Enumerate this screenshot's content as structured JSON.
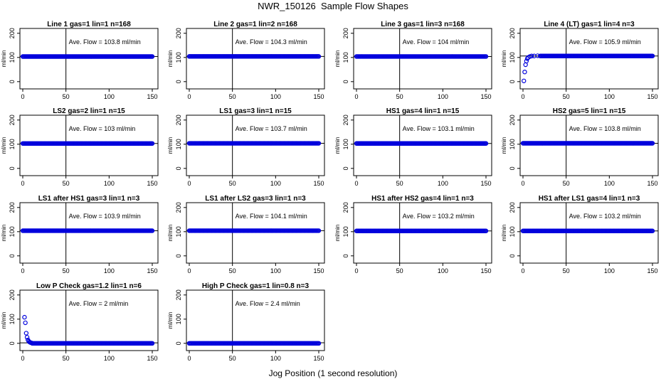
{
  "page": {
    "title": "NWR_150126  Sample Flow Shapes",
    "xlabel": "Jog Position (1 second resolution)"
  },
  "chart_data": [
    {
      "type": "scatter",
      "title": "Line 1 gas=1 lin=1 n=168",
      "ylabel": "ml/min",
      "annotation": "Ave. Flow =  103.8  ml/min",
      "xlim": [
        0,
        150
      ],
      "ylim": [
        -30,
        220
      ],
      "xticks": [
        0,
        50,
        100,
        150
      ],
      "yticks": [
        0,
        100,
        200
      ],
      "vline_x": 50,
      "hline_y": 103.8,
      "series": [
        {
          "color": "#0000dd",
          "start": [],
          "steady": 103.8,
          "x_from": 0,
          "x_to": 150
        }
      ]
    },
    {
      "type": "scatter",
      "title": "Line 2 gas=1 lin=2 n=168",
      "ylabel": "ml/min",
      "annotation": "Ave. Flow =  104.3  ml/min",
      "xlim": [
        0,
        150
      ],
      "ylim": [
        -30,
        220
      ],
      "xticks": [
        0,
        50,
        100,
        150
      ],
      "yticks": [
        0,
        100,
        200
      ],
      "vline_x": 50,
      "hline_y": 104.3,
      "series": [
        {
          "color": "#0000dd",
          "start": [],
          "steady": 104.3,
          "x_from": 0,
          "x_to": 150
        }
      ]
    },
    {
      "type": "scatter",
      "title": "Line 3 gas=1 lin=3 n=168",
      "ylabel": "ml/min",
      "annotation": "Ave. Flow =  104  ml/min",
      "xlim": [
        0,
        150
      ],
      "ylim": [
        -30,
        220
      ],
      "xticks": [
        0,
        50,
        100,
        150
      ],
      "yticks": [
        0,
        100,
        200
      ],
      "vline_x": 50,
      "hline_y": 104,
      "series": [
        {
          "color": "#0000dd",
          "start": [],
          "steady": 104,
          "x_from": 0,
          "x_to": 150
        }
      ]
    },
    {
      "type": "scatter",
      "title": "Line 4 (LT) gas=1 lin=4 n=3",
      "ylabel": "ml/min",
      "annotation": "Ave. Flow =  105.9  ml/min",
      "xlim": [
        0,
        150
      ],
      "ylim": [
        -30,
        220
      ],
      "xticks": [
        0,
        50,
        100,
        150
      ],
      "yticks": [
        0,
        100,
        200
      ],
      "vline_x": 50,
      "hline_y": 105.9,
      "series": [
        {
          "color": "#0000dd",
          "start": [
            [
              1,
              3
            ],
            [
              2,
              40
            ],
            [
              3,
              70
            ],
            [
              4,
              85
            ],
            [
              5,
              95
            ],
            [
              6,
              100
            ],
            [
              8,
              104
            ],
            [
              10,
              106
            ],
            [
              13,
              106
            ],
            [
              17,
              107
            ]
          ],
          "steady": 106.2,
          "x_from": 20,
          "x_to": 150
        }
      ]
    },
    {
      "type": "scatter",
      "title": "LS2 gas=2 lin=1 n=15",
      "ylabel": "ml/min",
      "annotation": "Ave. Flow =  103  ml/min",
      "xlim": [
        0,
        150
      ],
      "ylim": [
        -30,
        220
      ],
      "xticks": [
        0,
        50,
        100,
        150
      ],
      "yticks": [
        0,
        100,
        200
      ],
      "vline_x": 50,
      "hline_y": 103,
      "series": [
        {
          "color": "#0000dd",
          "start": [],
          "steady": 103,
          "x_from": 0,
          "x_to": 150
        }
      ]
    },
    {
      "type": "scatter",
      "title": "LS1 gas=3 lin=1 n=15",
      "ylabel": "ml/min",
      "annotation": "Ave. Flow =  103.7  ml/min",
      "xlim": [
        0,
        150
      ],
      "ylim": [
        -30,
        220
      ],
      "xticks": [
        0,
        50,
        100,
        150
      ],
      "yticks": [
        0,
        100,
        200
      ],
      "vline_x": 50,
      "hline_y": 103.7,
      "series": [
        {
          "color": "#0000dd",
          "start": [],
          "steady": 103.7,
          "x_from": 0,
          "x_to": 150
        }
      ]
    },
    {
      "type": "scatter",
      "title": "HS1 gas=4 lin=1 n=15",
      "ylabel": "ml/min",
      "annotation": "Ave. Flow =  103.1  ml/min",
      "xlim": [
        0,
        150
      ],
      "ylim": [
        -30,
        220
      ],
      "xticks": [
        0,
        50,
        100,
        150
      ],
      "yticks": [
        0,
        100,
        200
      ],
      "vline_x": 50,
      "hline_y": 103.1,
      "series": [
        {
          "color": "#0000dd",
          "start": [],
          "steady": 103.1,
          "x_from": 0,
          "x_to": 150
        }
      ]
    },
    {
      "type": "scatter",
      "title": "HS2 gas=5 lin=1 n=15",
      "ylabel": "ml/min",
      "annotation": "Ave. Flow =  103.8  ml/min",
      "xlim": [
        0,
        150
      ],
      "ylim": [
        -30,
        220
      ],
      "xticks": [
        0,
        50,
        100,
        150
      ],
      "yticks": [
        0,
        100,
        200
      ],
      "vline_x": 50,
      "hline_y": 103.8,
      "series": [
        {
          "color": "#0000dd",
          "start": [],
          "steady": 103.8,
          "x_from": 0,
          "x_to": 150
        }
      ]
    },
    {
      "type": "scatter",
      "title": "LS1 after HS1 gas=3 lin=1 n=3",
      "ylabel": "ml/min",
      "annotation": "Ave. Flow =  103.9  ml/min",
      "xlim": [
        0,
        150
      ],
      "ylim": [
        -30,
        220
      ],
      "xticks": [
        0,
        50,
        100,
        150
      ],
      "yticks": [
        0,
        100,
        200
      ],
      "vline_x": 50,
      "hline_y": 103.9,
      "series": [
        {
          "color": "#0000dd",
          "start": [],
          "steady": 103.9,
          "x_from": 0,
          "x_to": 150
        }
      ]
    },
    {
      "type": "scatter",
      "title": "LS1 after LS2 gas=3 lin=1 n=3",
      "ylabel": "ml/min",
      "annotation": "Ave. Flow =  104.1  ml/min",
      "xlim": [
        0,
        150
      ],
      "ylim": [
        -30,
        220
      ],
      "xticks": [
        0,
        50,
        100,
        150
      ],
      "yticks": [
        0,
        100,
        200
      ],
      "vline_x": 50,
      "hline_y": 104.1,
      "series": [
        {
          "color": "#0000dd",
          "start": [],
          "steady": 104.1,
          "x_from": 0,
          "x_to": 150
        }
      ]
    },
    {
      "type": "scatter",
      "title": "HS1 after HS2 gas=4 lin=1 n=3",
      "ylabel": "ml/min",
      "annotation": "Ave. Flow =  103.2  ml/min",
      "xlim": [
        0,
        150
      ],
      "ylim": [
        -30,
        220
      ],
      "xticks": [
        0,
        50,
        100,
        150
      ],
      "yticks": [
        0,
        100,
        200
      ],
      "vline_x": 50,
      "hline_y": 103.2,
      "series": [
        {
          "color": "#0000dd",
          "start": [],
          "steady": 103.2,
          "x_from": 0,
          "x_to": 150
        }
      ]
    },
    {
      "type": "scatter",
      "title": "HS1 after LS1 gas=4 lin=1 n=3",
      "ylabel": "ml/min",
      "annotation": "Ave. Flow =  103.2  ml/min",
      "xlim": [
        0,
        150
      ],
      "ylim": [
        -30,
        220
      ],
      "xticks": [
        0,
        50,
        100,
        150
      ],
      "yticks": [
        0,
        100,
        200
      ],
      "vline_x": 50,
      "hline_y": 103.2,
      "series": [
        {
          "color": "#0000dd",
          "start": [],
          "steady": 103.2,
          "x_from": 0,
          "x_to": 150
        }
      ]
    },
    {
      "type": "scatter",
      "title": "Low P Check gas=1.2 lin=1 n=6",
      "ylabel": "ml/min",
      "annotation": "Ave. Flow =  2  ml/min",
      "xlim": [
        0,
        150
      ],
      "ylim": [
        -30,
        220
      ],
      "xticks": [
        0,
        50,
        100,
        150
      ],
      "yticks": [
        0,
        100,
        200
      ],
      "vline_x": 50,
      "hline_y": 2,
      "series": [
        {
          "color": "#0000dd",
          "start": [
            [
              2,
              108
            ],
            [
              3,
              85
            ],
            [
              4,
              42
            ],
            [
              5,
              25
            ],
            [
              6,
              14
            ],
            [
              7,
              8
            ],
            [
              8,
              5
            ],
            [
              9,
              3
            ],
            [
              10,
              2
            ]
          ],
          "steady": 0,
          "x_from": 11,
          "x_to": 150
        }
      ]
    },
    {
      "type": "scatter",
      "title": "High P Check gas=1 lin=0.8 n=3",
      "ylabel": "ml/min",
      "annotation": "Ave. Flow =  2.4  ml/min",
      "xlim": [
        0,
        150
      ],
      "ylim": [
        -30,
        220
      ],
      "xticks": [
        0,
        50,
        100,
        150
      ],
      "yticks": [
        0,
        100,
        200
      ],
      "vline_x": 50,
      "hline_y": 2.4,
      "series": [
        {
          "color": "#0000dd",
          "start": [],
          "steady": 0,
          "x_from": 0,
          "x_to": 150
        }
      ]
    }
  ]
}
